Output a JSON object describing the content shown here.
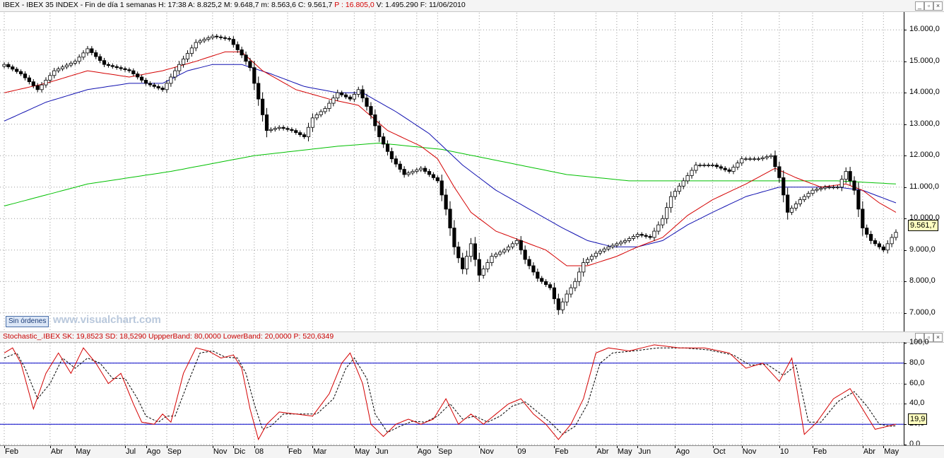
{
  "header": {
    "symbol": "IBEX",
    "text": " - IBEX 35 INDEX - Fin de día 1 semanas  H: 17:38  A: 8.825,2  M: 9.648,7  m: 8.563,6  C: 9.561,7  ",
    "p_text": "P : 16.805,0",
    "tail_text": "  V: 1.495.290  F: 11/06/2010"
  },
  "window_buttons": {
    "min": "_",
    "max": "▫",
    "close": "×"
  },
  "sin_ordenes": "Sin órdenes",
  "watermark": "www.visualchart.com",
  "osc_header": "Stochastic_.IBEX  SK: 19,8523  SD: 18,5290  UppperBand: 80,0000  LowerBand: 20,0000  P: 520,6349",
  "last_price_label": "9.561,7",
  "last_osc_label": "19,9",
  "colors": {
    "sma_short": "#d40000",
    "sma_mid": "#1010b0",
    "sma_long": "#00c000",
    "stoch_k": "#d40000",
    "stoch_d": "#000000",
    "band": "#0000c8"
  },
  "chart_data": [
    {
      "type": "candlestick",
      "title": "IBEX - IBEX 35 INDEX - Fin de día 1 semanas",
      "period": "weekly",
      "ylim": [
        6500,
        16500
      ],
      "y_ticks": [
        "7.000,0",
        "8.000,0",
        "9.000,0",
        "10.000,0",
        "11.000,0",
        "12.000,0",
        "13.000,0",
        "14.000,0",
        "15.000,0",
        "16.000,0"
      ],
      "y_tick_values": [
        7000,
        8000,
        9000,
        10000,
        11000,
        12000,
        13000,
        14000,
        15000,
        16000
      ],
      "x_labels": [
        "Feb",
        "Abr",
        "May",
        "Jul",
        "Ago",
        "Sep",
        "Nov",
        "Dic",
        "08",
        "Feb",
        "Mar",
        "May",
        "Jun",
        "Ago",
        "Sep",
        "Nov",
        "09",
        "Feb",
        "Abr",
        "May",
        "Jun",
        "Ago",
        "Oct",
        "Nov",
        "10",
        "Feb",
        "Abr",
        "May"
      ],
      "x_label_weeks": [
        0,
        11,
        17,
        29,
        34,
        39,
        50,
        55,
        60,
        68,
        74,
        84,
        89,
        99,
        104,
        114,
        123,
        132,
        142,
        147,
        152,
        161,
        170,
        177,
        186,
        194,
        206,
        211
      ],
      "close_anchors": [
        [
          0,
          14900
        ],
        [
          4,
          14600
        ],
        [
          8,
          14100
        ],
        [
          12,
          14700
        ],
        [
          17,
          15000
        ],
        [
          20,
          15400
        ],
        [
          24,
          14900
        ],
        [
          30,
          14700
        ],
        [
          34,
          14300
        ],
        [
          38,
          14100
        ],
        [
          42,
          14900
        ],
        [
          46,
          15600
        ],
        [
          50,
          15800
        ],
        [
          54,
          15700
        ],
        [
          57,
          15200
        ],
        [
          59,
          14800
        ],
        [
          61,
          13800
        ],
        [
          63,
          12800
        ],
        [
          66,
          12900
        ],
        [
          69,
          12800
        ],
        [
          72,
          12600
        ],
        [
          74,
          13200
        ],
        [
          77,
          13500
        ],
        [
          80,
          14000
        ],
        [
          83,
          13800
        ],
        [
          85,
          14100
        ],
        [
          88,
          13300
        ],
        [
          90,
          12600
        ],
        [
          93,
          11900
        ],
        [
          96,
          11400
        ],
        [
          100,
          11600
        ],
        [
          104,
          11200
        ],
        [
          106,
          10300
        ],
        [
          108,
          9100
        ],
        [
          110,
          8400
        ],
        [
          112,
          9200
        ],
        [
          114,
          8200
        ],
        [
          117,
          8800
        ],
        [
          120,
          9000
        ],
        [
          123,
          9300
        ],
        [
          125,
          8700
        ],
        [
          128,
          8100
        ],
        [
          131,
          7800
        ],
        [
          133,
          7100
        ],
        [
          135,
          7600
        ],
        [
          137,
          8000
        ],
        [
          139,
          8600
        ],
        [
          142,
          8900
        ],
        [
          145,
          9100
        ],
        [
          149,
          9300
        ],
        [
          152,
          9500
        ],
        [
          155,
          9400
        ],
        [
          158,
          10000
        ],
        [
          160,
          10700
        ],
        [
          163,
          11200
        ],
        [
          166,
          11700
        ],
        [
          170,
          11700
        ],
        [
          174,
          11500
        ],
        [
          177,
          11900
        ],
        [
          181,
          11900
        ],
        [
          184,
          12000
        ],
        [
          186,
          11300
        ],
        [
          188,
          10200
        ],
        [
          191,
          10600
        ],
        [
          194,
          10900
        ],
        [
          197,
          11000
        ],
        [
          200,
          11000
        ],
        [
          202,
          11500
        ],
        [
          204,
          10900
        ],
        [
          206,
          9700
        ],
        [
          208,
          9300
        ],
        [
          211,
          9000
        ],
        [
          213,
          9400
        ],
        [
          214,
          9562
        ]
      ],
      "sma_short_anchors": [
        [
          0,
          14000
        ],
        [
          10,
          14300
        ],
        [
          20,
          14700
        ],
        [
          30,
          14500
        ],
        [
          38,
          14700
        ],
        [
          46,
          15000
        ],
        [
          53,
          15300
        ],
        [
          57,
          15300
        ],
        [
          62,
          14700
        ],
        [
          70,
          14100
        ],
        [
          78,
          13800
        ],
        [
          85,
          13600
        ],
        [
          92,
          12800
        ],
        [
          100,
          12300
        ],
        [
          104,
          11900
        ],
        [
          108,
          11000
        ],
        [
          112,
          10200
        ],
        [
          118,
          9600
        ],
        [
          124,
          9300
        ],
        [
          130,
          9000
        ],
        [
          135,
          8500
        ],
        [
          140,
          8500
        ],
        [
          147,
          8800
        ],
        [
          152,
          9100
        ],
        [
          158,
          9400
        ],
        [
          164,
          10100
        ],
        [
          170,
          10600
        ],
        [
          178,
          11100
        ],
        [
          185,
          11600
        ],
        [
          190,
          11300
        ],
        [
          196,
          11000
        ],
        [
          202,
          11100
        ],
        [
          206,
          10900
        ],
        [
          210,
          10500
        ],
        [
          214,
          10200
        ]
      ],
      "sma_mid_anchors": [
        [
          0,
          13100
        ],
        [
          10,
          13700
        ],
        [
          20,
          14100
        ],
        [
          30,
          14300
        ],
        [
          38,
          14300
        ],
        [
          44,
          14700
        ],
        [
          50,
          14900
        ],
        [
          57,
          14900
        ],
        [
          64,
          14600
        ],
        [
          72,
          14200
        ],
        [
          80,
          14000
        ],
        [
          86,
          14000
        ],
        [
          94,
          13400
        ],
        [
          102,
          12700
        ],
        [
          110,
          11700
        ],
        [
          118,
          10900
        ],
        [
          126,
          10300
        ],
        [
          134,
          9700
        ],
        [
          140,
          9300
        ],
        [
          146,
          9100
        ],
        [
          152,
          9100
        ],
        [
          158,
          9300
        ],
        [
          164,
          9800
        ],
        [
          170,
          10200
        ],
        [
          178,
          10700
        ],
        [
          186,
          11000
        ],
        [
          192,
          11000
        ],
        [
          200,
          11000
        ],
        [
          206,
          10900
        ],
        [
          214,
          10500
        ]
      ],
      "sma_long_anchors": [
        [
          0,
          10400
        ],
        [
          20,
          11100
        ],
        [
          40,
          11500
        ],
        [
          60,
          12000
        ],
        [
          80,
          12300
        ],
        [
          90,
          12400
        ],
        [
          105,
          12200
        ],
        [
          120,
          11800
        ],
        [
          135,
          11400
        ],
        [
          150,
          11200
        ],
        [
          165,
          11200
        ],
        [
          185,
          11200
        ],
        [
          200,
          11200
        ],
        [
          214,
          11100
        ]
      ]
    },
    {
      "type": "line",
      "title": "Stochastic_.IBEX",
      "ylim": [
        0,
        100
      ],
      "y_ticks": [
        "0,0",
        "20,0",
        "40,0",
        "60,0",
        "80,0",
        "100,0"
      ],
      "y_tick_values": [
        0,
        20,
        40,
        60,
        80,
        100
      ],
      "bands": [
        80,
        20
      ],
      "series": [
        {
          "name": "SK",
          "anchors": [
            [
              0,
              90
            ],
            [
              2,
              95
            ],
            [
              4,
              80
            ],
            [
              7,
              35
            ],
            [
              10,
              70
            ],
            [
              13,
              90
            ],
            [
              16,
              70
            ],
            [
              19,
              95
            ],
            [
              22,
              80
            ],
            [
              25,
              60
            ],
            [
              28,
              70
            ],
            [
              31,
              40
            ],
            [
              33,
              22
            ],
            [
              36,
              20
            ],
            [
              38,
              30
            ],
            [
              40,
              22
            ],
            [
              43,
              70
            ],
            [
              46,
              95
            ],
            [
              49,
              92
            ],
            [
              52,
              85
            ],
            [
              55,
              88
            ],
            [
              57,
              75
            ],
            [
              59,
              35
            ],
            [
              61,
              5
            ],
            [
              63,
              20
            ],
            [
              66,
              32
            ],
            [
              70,
              30
            ],
            [
              74,
              28
            ],
            [
              78,
              50
            ],
            [
              81,
              80
            ],
            [
              83,
              90
            ],
            [
              86,
              60
            ],
            [
              88,
              20
            ],
            [
              91,
              8
            ],
            [
              94,
              20
            ],
            [
              97,
              25
            ],
            [
              100,
              20
            ],
            [
              103,
              25
            ],
            [
              106,
              45
            ],
            [
              109,
              20
            ],
            [
              112,
              30
            ],
            [
              115,
              20
            ],
            [
              118,
              30
            ],
            [
              121,
              40
            ],
            [
              124,
              45
            ],
            [
              127,
              30
            ],
            [
              130,
              20
            ],
            [
              133,
              5
            ],
            [
              136,
              20
            ],
            [
              139,
              45
            ],
            [
              142,
              90
            ],
            [
              145,
              95
            ],
            [
              150,
              92
            ],
            [
              156,
              98
            ],
            [
              162,
              95
            ],
            [
              168,
              95
            ],
            [
              174,
              90
            ],
            [
              178,
              75
            ],
            [
              182,
              80
            ],
            [
              186,
              62
            ],
            [
              189,
              85
            ],
            [
              192,
              10
            ],
            [
              195,
              22
            ],
            [
              199,
              45
            ],
            [
              203,
              55
            ],
            [
              206,
              35
            ],
            [
              209,
              15
            ],
            [
              212,
              18
            ],
            [
              214,
              20
            ]
          ]
        },
        {
          "name": "SD",
          "anchors": [
            [
              0,
              85
            ],
            [
              3,
              90
            ],
            [
              5,
              75
            ],
            [
              8,
              45
            ],
            [
              11,
              60
            ],
            [
              14,
              85
            ],
            [
              17,
              75
            ],
            [
              20,
              85
            ],
            [
              23,
              80
            ],
            [
              26,
              65
            ],
            [
              29,
              65
            ],
            [
              32,
              45
            ],
            [
              34,
              28
            ],
            [
              37,
              22
            ],
            [
              39,
              28
            ],
            [
              41,
              28
            ],
            [
              44,
              60
            ],
            [
              47,
              90
            ],
            [
              50,
              92
            ],
            [
              53,
              86
            ],
            [
              56,
              85
            ],
            [
              58,
              70
            ],
            [
              60,
              40
            ],
            [
              62,
              15
            ],
            [
              64,
              18
            ],
            [
              67,
              30
            ],
            [
              71,
              30
            ],
            [
              75,
              30
            ],
            [
              79,
              45
            ],
            [
              82,
              75
            ],
            [
              84,
              85
            ],
            [
              87,
              65
            ],
            [
              89,
              30
            ],
            [
              92,
              12
            ],
            [
              95,
              18
            ],
            [
              98,
              23
            ],
            [
              101,
              22
            ],
            [
              104,
              28
            ],
            [
              107,
              40
            ],
            [
              110,
              25
            ],
            [
              113,
              28
            ],
            [
              116,
              22
            ],
            [
              119,
              28
            ],
            [
              122,
              38
            ],
            [
              125,
              42
            ],
            [
              128,
              32
            ],
            [
              131,
              22
            ],
            [
              134,
              10
            ],
            [
              137,
              18
            ],
            [
              140,
              40
            ],
            [
              143,
              80
            ],
            [
              146,
              90
            ],
            [
              151,
              92
            ],
            [
              157,
              95
            ],
            [
              163,
              95
            ],
            [
              169,
              93
            ],
            [
              175,
              88
            ],
            [
              179,
              78
            ],
            [
              183,
              79
            ],
            [
              187,
              68
            ],
            [
              190,
              78
            ],
            [
              193,
              22
            ],
            [
              196,
              22
            ],
            [
              200,
              42
            ],
            [
              204,
              52
            ],
            [
              207,
              38
            ],
            [
              210,
              20
            ],
            [
              213,
              18
            ],
            [
              214,
              18.5
            ]
          ]
        }
      ]
    }
  ]
}
